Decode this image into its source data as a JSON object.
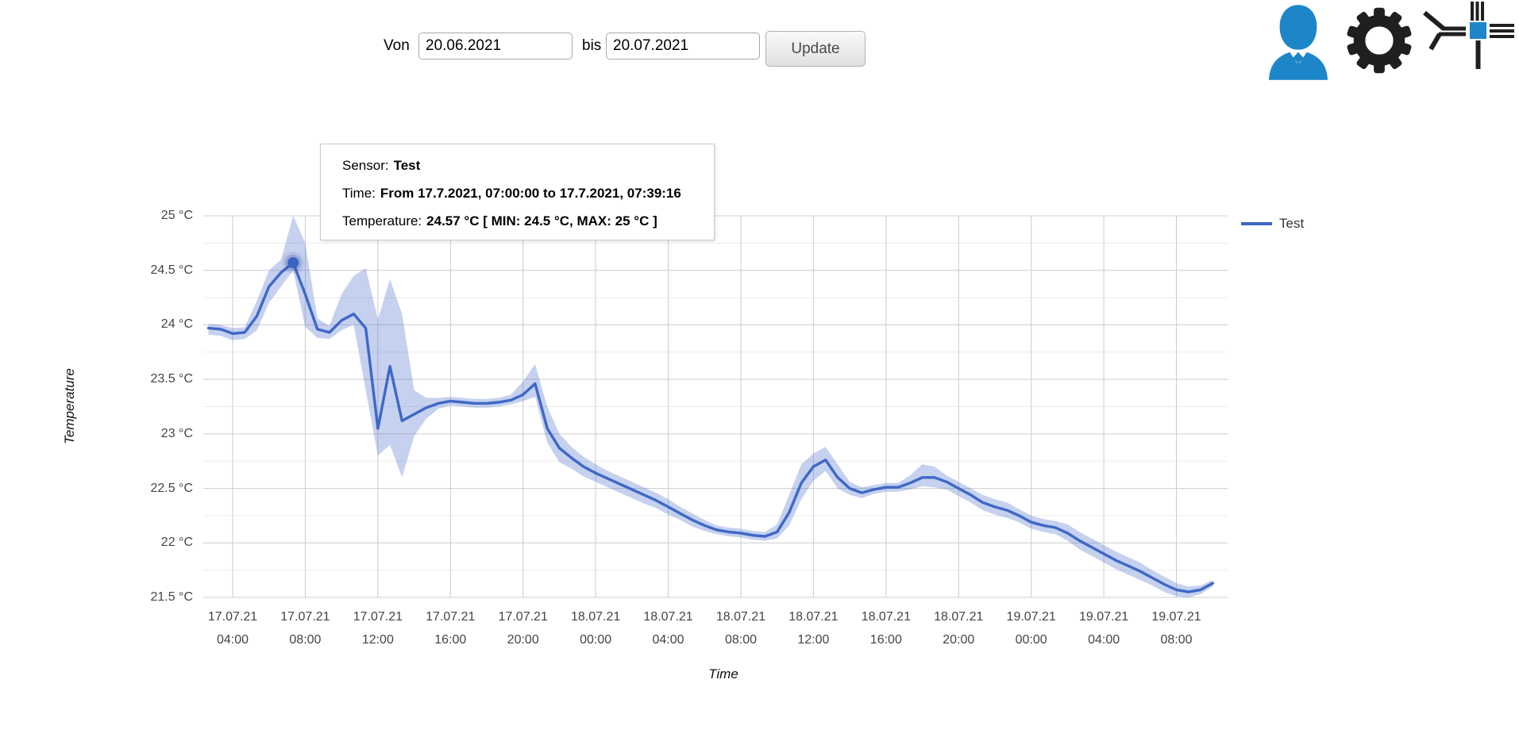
{
  "toolbar": {
    "von_label": "Von",
    "von_value": "20.06.2021",
    "bis_label": "bis",
    "bis_value": "20.07.2021",
    "update_label": "Update"
  },
  "header_icons": {
    "user": "user-icon",
    "settings": "gear-icon",
    "network": "sensor-network-icon"
  },
  "colors": {
    "series_line": "#3e68c6",
    "band_fill": "rgba(62,104,198,0.30)",
    "point_fill": "#3a63c3",
    "point_halo": "rgba(44,75,150,0.22)",
    "grid_major": "#cccccc",
    "grid_minor": "#ebebeb",
    "tick_label": "#444444",
    "icon_blue": "#1d86c8",
    "icon_black": "#1f1f1f"
  },
  "legend": {
    "label": "Test"
  },
  "tooltip": {
    "sensor_label": "Sensor:",
    "sensor_value": "Test",
    "time_label": "Time:",
    "time_value": "From 17.7.2021, 07:00:00 to 17.7.2021, 07:39:16",
    "temp_label": "Temperature:",
    "temp_value": "24.57 °C [ MIN: 24.5 °C, MAX: 25 °C ]"
  },
  "chart_data": {
    "type": "line",
    "xlabel": "Time",
    "ylabel": "Temperature",
    "ylim": [
      21.5,
      25
    ],
    "y_minor_step": 0.25,
    "xlim_hours": [
      2.381,
      58.82
    ],
    "t_start": 2.6667,
    "t_step": 0.66667,
    "series": [
      {
        "name": "Test",
        "values": [
          23.97,
          23.96,
          23.92,
          23.93,
          24.08,
          24.35,
          24.48,
          24.57,
          24.28,
          23.96,
          23.93,
          24.04,
          24.1,
          23.97,
          23.05,
          23.62,
          23.12,
          23.18,
          23.24,
          23.28,
          23.3,
          23.29,
          23.28,
          23.28,
          23.29,
          23.31,
          23.36,
          23.46,
          23.05,
          22.87,
          22.78,
          22.7,
          22.64,
          22.59,
          22.54,
          22.49,
          22.44,
          22.39,
          22.33,
          22.27,
          22.21,
          22.16,
          22.12,
          22.1,
          22.09,
          22.07,
          22.06,
          22.1,
          22.28,
          22.55,
          22.7,
          22.76,
          22.6,
          22.5,
          22.46,
          22.49,
          22.51,
          22.51,
          22.55,
          22.6,
          22.6,
          22.56,
          22.5,
          22.44,
          22.37,
          22.33,
          22.3,
          22.25,
          22.19,
          22.16,
          22.14,
          22.09,
          22.02,
          21.96,
          21.9,
          21.84,
          21.79,
          21.74,
          21.68,
          21.62,
          21.57,
          21.55,
          21.57,
          21.63
        ],
        "min": [
          23.91,
          23.9,
          23.86,
          23.87,
          23.95,
          24.2,
          24.35,
          24.5,
          23.98,
          23.88,
          23.87,
          23.95,
          24.0,
          23.4,
          22.8,
          22.9,
          22.6,
          22.98,
          23.14,
          23.23,
          23.26,
          23.25,
          23.24,
          23.24,
          23.25,
          23.27,
          23.3,
          23.34,
          22.92,
          22.74,
          22.68,
          22.61,
          22.56,
          22.51,
          22.46,
          22.41,
          22.36,
          22.32,
          22.26,
          22.21,
          22.15,
          22.11,
          22.08,
          22.06,
          22.05,
          22.03,
          22.02,
          22.04,
          22.16,
          22.4,
          22.57,
          22.66,
          22.5,
          22.44,
          22.41,
          22.45,
          22.47,
          22.47,
          22.49,
          22.52,
          22.51,
          22.49,
          22.43,
          22.37,
          22.3,
          22.26,
          22.23,
          22.19,
          22.13,
          22.1,
          22.08,
          22.02,
          21.94,
          21.88,
          21.82,
          21.76,
          21.71,
          21.66,
          21.61,
          21.55,
          21.51,
          21.5,
          21.53,
          21.6
        ],
        "max": [
          24.01,
          24.0,
          23.97,
          23.98,
          24.22,
          24.5,
          24.6,
          25.0,
          24.75,
          24.06,
          23.99,
          24.28,
          24.45,
          24.52,
          24.05,
          24.42,
          24.1,
          23.4,
          23.33,
          23.33,
          23.34,
          23.33,
          23.32,
          23.32,
          23.33,
          23.36,
          23.48,
          23.64,
          23.25,
          23.0,
          22.88,
          22.79,
          22.72,
          22.66,
          22.61,
          22.56,
          22.51,
          22.46,
          22.4,
          22.33,
          22.27,
          22.21,
          22.16,
          22.14,
          22.13,
          22.11,
          22.1,
          22.17,
          22.44,
          22.72,
          22.82,
          22.88,
          22.72,
          22.56,
          22.51,
          22.53,
          22.55,
          22.55,
          22.62,
          22.72,
          22.7,
          22.62,
          22.56,
          22.5,
          22.44,
          22.4,
          22.37,
          22.31,
          22.25,
          22.22,
          22.2,
          22.17,
          22.1,
          22.04,
          21.98,
          21.92,
          21.87,
          21.82,
          21.75,
          21.69,
          21.63,
          21.6,
          21.61,
          21.66
        ]
      }
    ],
    "highlighted_point": {
      "t": 7.3333,
      "value": 24.57
    },
    "x_ticks": [
      {
        "t": 4,
        "date": "17.07.21",
        "time": "04:00"
      },
      {
        "t": 8,
        "date": "17.07.21",
        "time": "08:00"
      },
      {
        "t": 12,
        "date": "17.07.21",
        "time": "12:00"
      },
      {
        "t": 16,
        "date": "17.07.21",
        "time": "16:00"
      },
      {
        "t": 20,
        "date": "17.07.21",
        "time": "20:00"
      },
      {
        "t": 24,
        "date": "18.07.21",
        "time": "00:00"
      },
      {
        "t": 28,
        "date": "18.07.21",
        "time": "04:00"
      },
      {
        "t": 32,
        "date": "18.07.21",
        "time": "08:00"
      },
      {
        "t": 36,
        "date": "18.07.21",
        "time": "12:00"
      },
      {
        "t": 40,
        "date": "18.07.21",
        "time": "16:00"
      },
      {
        "t": 44,
        "date": "18.07.21",
        "time": "20:00"
      },
      {
        "t": 48,
        "date": "19.07.21",
        "time": "00:00"
      },
      {
        "t": 52,
        "date": "19.07.21",
        "time": "04:00"
      },
      {
        "t": 56,
        "date": "19.07.21",
        "time": "08:00"
      }
    ],
    "y_ticks": [
      {
        "value": 25,
        "label": "25 °C"
      },
      {
        "value": 24.5,
        "label": "24.5 °C"
      },
      {
        "value": 24,
        "label": "24 °C"
      },
      {
        "value": 23.5,
        "label": "23.5 °C"
      },
      {
        "value": 23,
        "label": "23 °C"
      },
      {
        "value": 22.5,
        "label": "22.5 °C"
      },
      {
        "value": 22,
        "label": "22 °C"
      },
      {
        "value": 21.5,
        "label": "21.5 °C"
      }
    ],
    "legend_position": "right",
    "grid": true
  }
}
